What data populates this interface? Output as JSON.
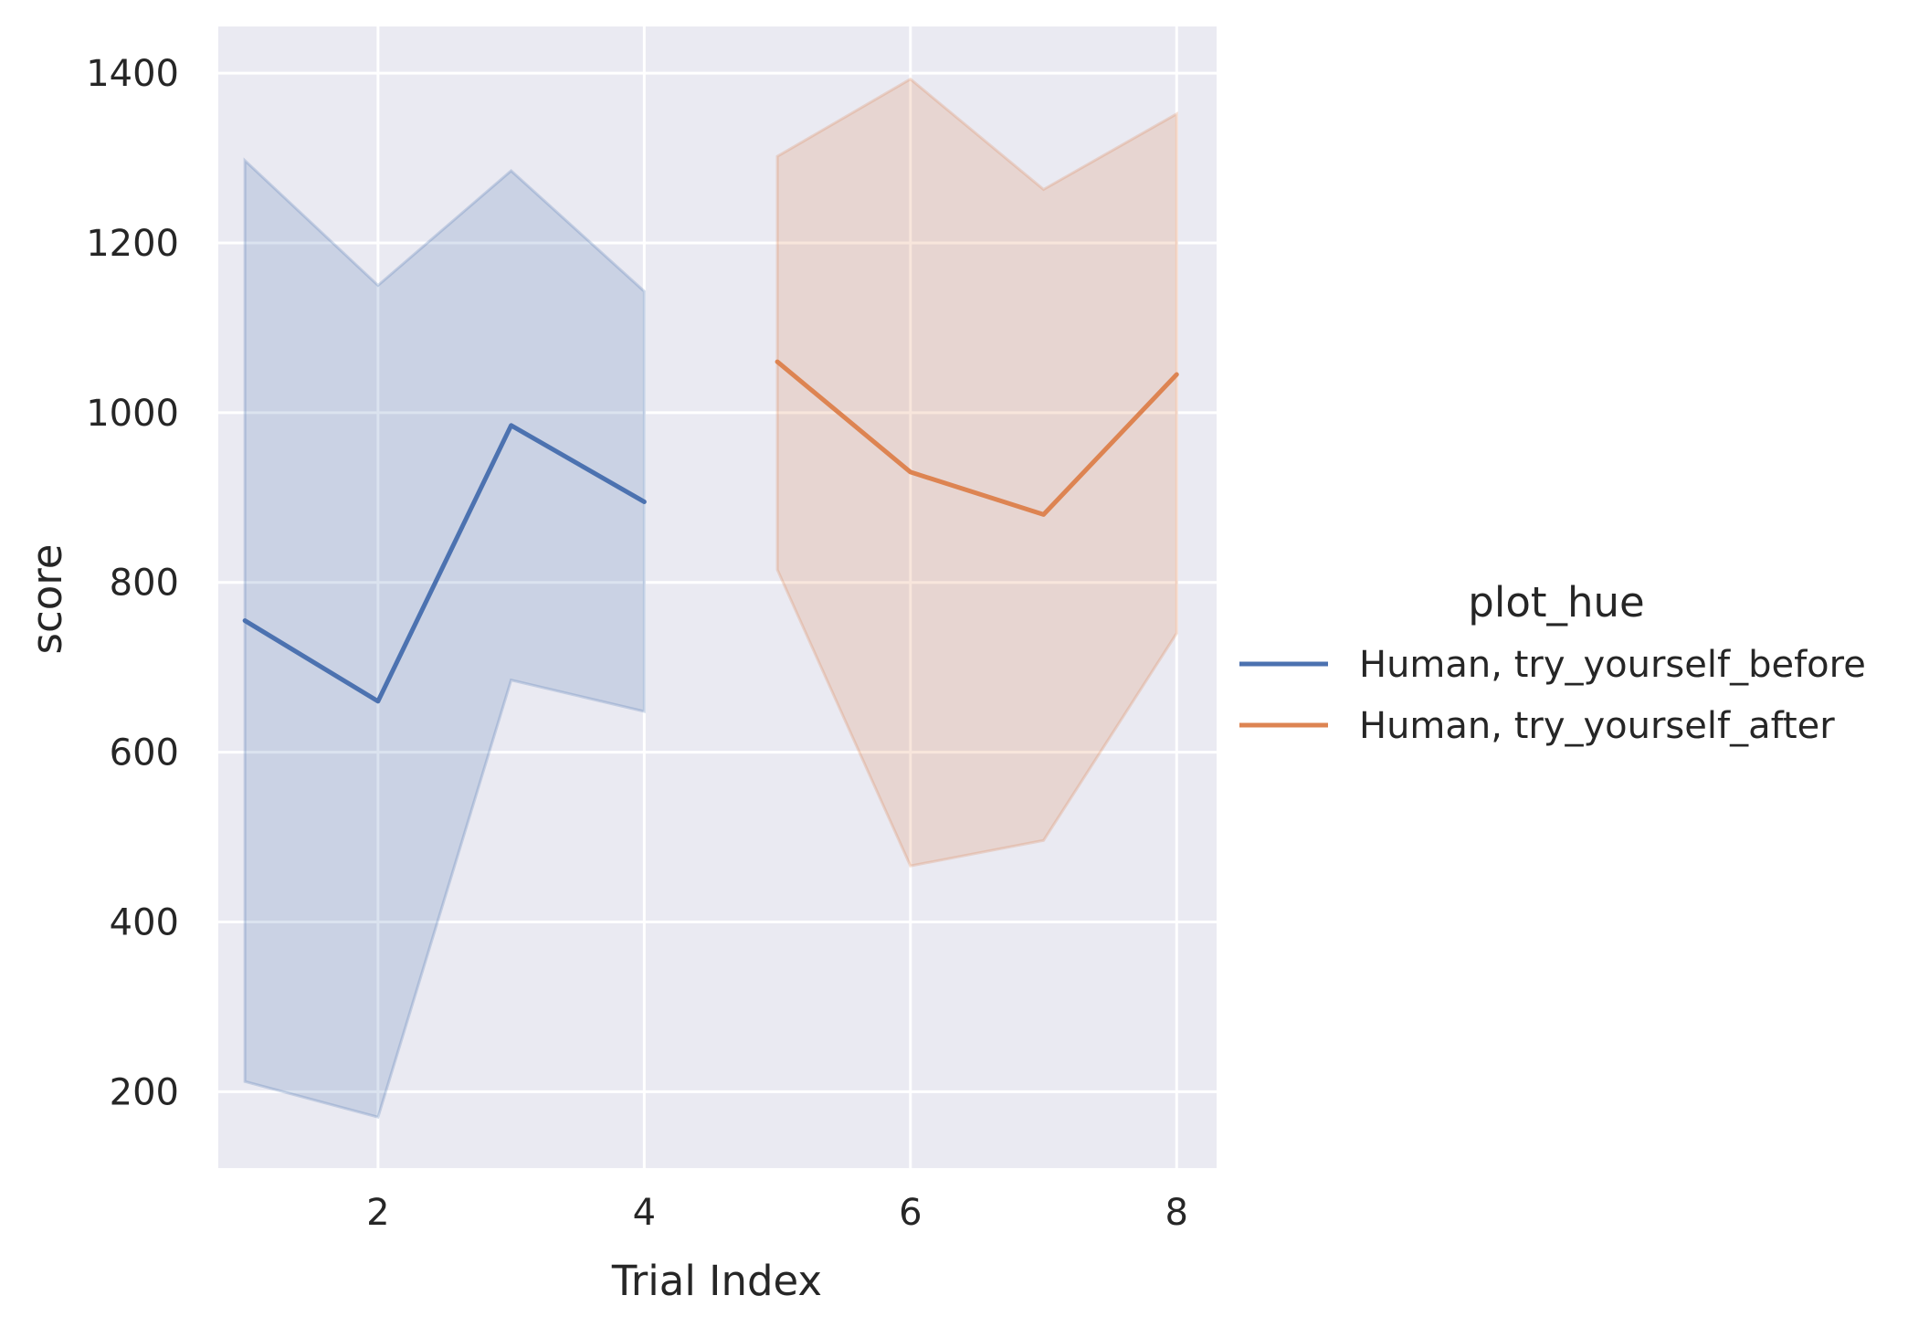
{
  "chart_data": {
    "type": "line",
    "xlabel": "Trial Index",
    "ylabel": "score",
    "xlim": [
      0.8,
      8.3
    ],
    "ylim": [
      110,
      1455
    ],
    "x_ticks": [
      2,
      4,
      6,
      8
    ],
    "y_ticks": [
      200,
      400,
      600,
      800,
      1000,
      1200,
      1400
    ],
    "grid": true,
    "legend_title": "plot_hue",
    "legend_position": "center-right",
    "series": [
      {
        "name": "Human, try_yourself_before",
        "color": "#4c72b0",
        "x": [
          1,
          2,
          3,
          4
        ],
        "values": [
          755,
          660,
          985,
          895
        ],
        "ci_upper": [
          1297,
          1150,
          1285,
          1143
        ],
        "ci_lower": [
          212,
          170,
          685,
          648
        ]
      },
      {
        "name": "Human, try_yourself_after",
        "color": "#dd8452",
        "x": [
          5,
          6,
          7,
          8
        ],
        "values": [
          1060,
          930,
          880,
          1045
        ],
        "ci_upper": [
          1302,
          1393,
          1263,
          1352
        ],
        "ci_lower": [
          815,
          466,
          496,
          740
        ]
      }
    ]
  }
}
